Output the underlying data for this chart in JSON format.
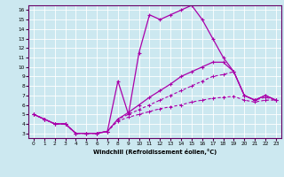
{
  "xlabel": "Windchill (Refroidissement éolien,°C)",
  "bg_color": "#cce8f0",
  "line_color": "#aa00aa",
  "grid_color": "#ffffff",
  "xlim": [
    -0.5,
    23.5
  ],
  "ylim": [
    2.5,
    16.5
  ],
  "xticks": [
    0,
    1,
    2,
    3,
    4,
    5,
    6,
    7,
    8,
    9,
    10,
    11,
    12,
    13,
    14,
    15,
    16,
    17,
    18,
    19,
    20,
    21,
    22,
    23
  ],
  "yticks": [
    3,
    4,
    5,
    6,
    7,
    8,
    9,
    10,
    11,
    12,
    13,
    14,
    15,
    16
  ],
  "line1_x": [
    0,
    1,
    2,
    3,
    4,
    5,
    6,
    7,
    8,
    9,
    10,
    11,
    12,
    13,
    14,
    15,
    16,
    17,
    18,
    19,
    20,
    21,
    22,
    23
  ],
  "line1_y": [
    5,
    4.5,
    4,
    4,
    3,
    3,
    3,
    3.2,
    8.5,
    5,
    11.5,
    15.5,
    15,
    15.5,
    16,
    16.5,
    15,
    13,
    11,
    9.5,
    7,
    6.5,
    7,
    6.5
  ],
  "line2_x": [
    0,
    1,
    2,
    3,
    4,
    5,
    6,
    7,
    8,
    9,
    10,
    11,
    12,
    13,
    14,
    15,
    16,
    17,
    18,
    19,
    20,
    21,
    22,
    23
  ],
  "line2_y": [
    5,
    4.5,
    4,
    4,
    3,
    3,
    3,
    3.2,
    4.5,
    5.2,
    6,
    6.8,
    7.5,
    8.2,
    9,
    9.5,
    10,
    10.5,
    10.5,
    9.5,
    7,
    6.5,
    7,
    6.5
  ],
  "line3_x": [
    0,
    1,
    2,
    3,
    4,
    5,
    6,
    7,
    8,
    9,
    10,
    11,
    12,
    13,
    14,
    15,
    16,
    17,
    18,
    19,
    20,
    21,
    22,
    23
  ],
  "line3_y": [
    5,
    4.5,
    4,
    4,
    3,
    3,
    3,
    3.2,
    4.5,
    5,
    5.5,
    6,
    6.5,
    7,
    7.5,
    8,
    8.5,
    9,
    9.2,
    9.5,
    7,
    6.5,
    6.8,
    6.5
  ],
  "line4_x": [
    0,
    1,
    2,
    3,
    4,
    5,
    6,
    7,
    8,
    9,
    10,
    11,
    12,
    13,
    14,
    15,
    16,
    17,
    18,
    19,
    20,
    21,
    22,
    23
  ],
  "line4_y": [
    5,
    4.5,
    4,
    4,
    3,
    3,
    3,
    3.2,
    4.3,
    4.7,
    5.0,
    5.3,
    5.6,
    5.8,
    6.0,
    6.3,
    6.5,
    6.7,
    6.8,
    6.9,
    6.5,
    6.3,
    6.5,
    6.5
  ]
}
